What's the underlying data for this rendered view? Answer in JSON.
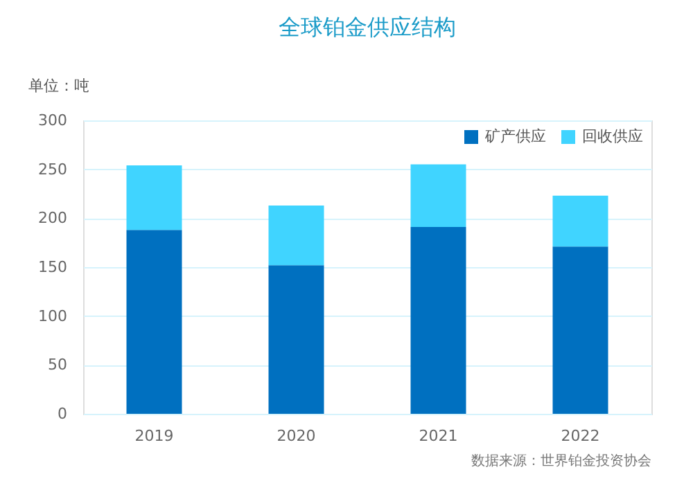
{
  "chart_data": {
    "type": "bar",
    "title": "全球铂金供应结构",
    "ylabel": "单位：吨",
    "categories": [
      "2019",
      "2020",
      "2021",
      "2022"
    ],
    "stacked": true,
    "series": [
      {
        "name": "矿产供应",
        "color": "#0070c0",
        "values": [
          188,
          152,
          191,
          171
        ]
      },
      {
        "name": "回收供应",
        "color": "#40d4ff",
        "values": [
          66,
          61,
          64,
          52
        ]
      }
    ],
    "ylim": [
      0,
      300
    ],
    "yticks": [
      0,
      50,
      100,
      150,
      200,
      250,
      300
    ],
    "grid": "y",
    "legend": "top right",
    "annotations": [
      "数据来源：世界铂金投资协会"
    ]
  }
}
